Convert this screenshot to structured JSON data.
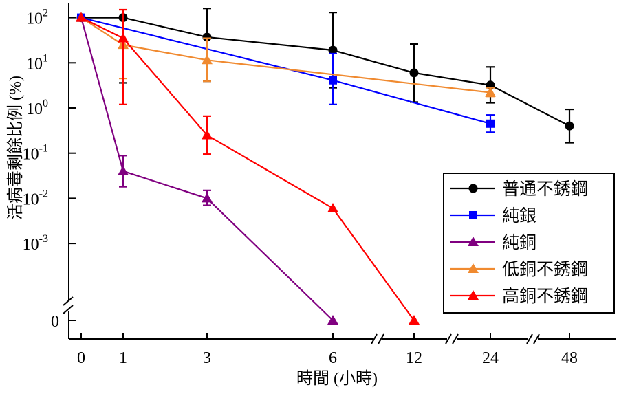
{
  "chart_data": {
    "type": "line",
    "xlabel": "時間 (小時)",
    "ylabel": "活病毒剩餘比例 (%)",
    "x_ticks": [
      "0",
      "1",
      "3",
      "6",
      "12",
      "24",
      "48"
    ],
    "y_ticks": [
      {
        "base": "10",
        "exp": "2",
        "value": 100
      },
      {
        "base": "10",
        "exp": "1",
        "value": 10
      },
      {
        "base": "10",
        "exp": "0",
        "value": 1
      },
      {
        "base": "10",
        "exp": "-1",
        "value": 0.1
      },
      {
        "base": "10",
        "exp": "-2",
        "value": 0.01
      },
      {
        "base": "10",
        "exp": "-3",
        "value": 0.001
      }
    ],
    "y_zero_label": "0",
    "y_scale": "log with broken axis to 0",
    "x_axis": "categorical with breaks between 6-12, 12-24, 24-48",
    "legend_position": "right",
    "series": [
      {
        "name": "普通不銹鋼",
        "color": "#000000",
        "marker": "circle",
        "x": [
          "0",
          "1",
          "3",
          "6",
          "12",
          "24",
          "48"
        ],
        "y": [
          100,
          100,
          37,
          19,
          6,
          3.2,
          0.4
        ],
        "err_low": [
          null,
          3.6,
          3.9,
          2.8,
          1.35,
          1.3,
          0.17
        ],
        "err_high": [
          null,
          null,
          160,
          130,
          26,
          8.1,
          0.93
        ]
      },
      {
        "name": "純銀",
        "color": "#0000ff",
        "marker": "square",
        "x": [
          "0",
          "6",
          "24"
        ],
        "y": [
          100,
          4.1,
          0.45
        ],
        "err_low": [
          null,
          1.2,
          0.29
        ],
        "err_high": [
          null,
          16,
          0.7
        ]
      },
      {
        "name": "純銅",
        "color": "#800080",
        "marker": "triangle",
        "x": [
          "0",
          "1",
          "3",
          "6"
        ],
        "y": [
          100,
          0.04,
          0.01,
          0
        ],
        "err_low": [
          null,
          0.018,
          0.007,
          null
        ],
        "err_high": [
          null,
          0.088,
          0.015,
          null
        ]
      },
      {
        "name": "低銅不銹鋼",
        "color": "#f08a30",
        "marker": "triangle",
        "x": [
          "0",
          "1",
          "3",
          "24"
        ],
        "y": [
          100,
          25,
          11.5,
          2.2
        ],
        "err_low": [
          null,
          4.5,
          3.9,
          1.8
        ],
        "err_high": [
          null,
          150,
          35,
          2.8
        ]
      },
      {
        "name": "高銅不銹鋼",
        "color": "#ff0000",
        "marker": "triangle",
        "x": [
          "0",
          "1",
          "3",
          "6",
          "12"
        ],
        "y": [
          100,
          35,
          0.25,
          0.006,
          0
        ],
        "err_low": [
          null,
          1.2,
          0.095,
          null,
          null
        ],
        "err_high": [
          null,
          150,
          0.66,
          null,
          null
        ]
      }
    ]
  }
}
